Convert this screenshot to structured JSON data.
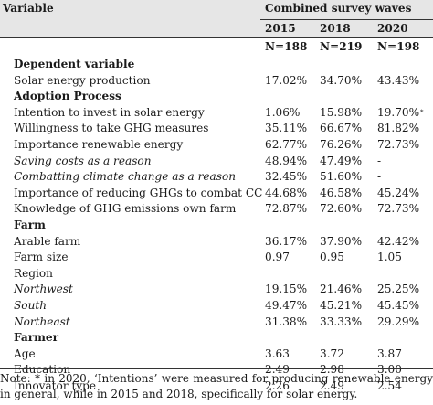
{
  "header": {
    "variable_label": "Variable",
    "group_label": "Combined survey waves",
    "years": [
      "2015",
      "2018",
      "2020"
    ],
    "counts": [
      "N=188",
      "N=219",
      "N=198"
    ]
  },
  "rows": [
    {
      "label": "Dependent variable",
      "style": "section",
      "values": [
        "",
        "",
        ""
      ]
    },
    {
      "label": "Solar energy production",
      "style": "normal",
      "values": [
        "17.02%",
        "34.70%",
        "43.43%"
      ]
    },
    {
      "label": "Adoption Process",
      "style": "section",
      "values": [
        "",
        "",
        ""
      ]
    },
    {
      "label": "Intention to invest in solar energy",
      "style": "normal",
      "values": [
        "1.06%",
        "15.98%",
        "19.70%"
      ],
      "mark": "*"
    },
    {
      "label": "Willingness to take GHG measures",
      "style": "normal",
      "values": [
        "35.11%",
        "66.67%",
        "81.82%"
      ]
    },
    {
      "label": "Importance renewable energy",
      "style": "normal",
      "values": [
        "62.77%",
        "76.26%",
        "72.73%"
      ]
    },
    {
      "label": "Saving costs as a reason",
      "style": "italic",
      "values": [
        "48.94%",
        "47.49%",
        "-"
      ]
    },
    {
      "label": "Combatting climate change as a reason",
      "style": "italic",
      "values": [
        "32.45%",
        "51.60%",
        "-"
      ]
    },
    {
      "label": "Importance of reducing GHGs to combat CC",
      "style": "normal",
      "values": [
        "44.68%",
        "46.58%",
        "45.24%"
      ]
    },
    {
      "label": "Knowledge of GHG emissions own farm",
      "style": "normal",
      "values": [
        "72.87%",
        "72.60%",
        "72.73%"
      ]
    },
    {
      "label": "Farm",
      "style": "section",
      "values": [
        "",
        "",
        ""
      ]
    },
    {
      "label": "Arable farm",
      "style": "normal",
      "values": [
        "36.17%",
        "37.90%",
        "42.42%"
      ]
    },
    {
      "label": "Farm size",
      "style": "normal",
      "values": [
        "0.97",
        "0.95",
        "1.05"
      ]
    },
    {
      "label": "Region",
      "style": "normal",
      "values": [
        "",
        "",
        ""
      ]
    },
    {
      "label": "Northwest",
      "style": "italic",
      "values": [
        "19.15%",
        "21.46%",
        "25.25%"
      ]
    },
    {
      "label": "South",
      "style": "italic",
      "values": [
        "49.47%",
        "45.21%",
        "45.45%"
      ]
    },
    {
      "label": "Northeast",
      "style": "italic",
      "values": [
        "31.38%",
        "33.33%",
        "29.29%"
      ]
    },
    {
      "label": "Farmer",
      "style": "section",
      "values": [
        "",
        "",
        ""
      ]
    },
    {
      "label": "Age",
      "style": "normal",
      "values": [
        "3.63",
        "3.72",
        "3.87"
      ]
    },
    {
      "label": "Education",
      "style": "normal",
      "values": [
        "2.49",
        "2.98",
        "3.00"
      ]
    },
    {
      "label": "Innovator type",
      "style": "normal",
      "values": [
        "2.26",
        "2.49",
        "2.54"
      ]
    }
  ],
  "note": "Note: * in 2020, ‘Intentions’ were measured for producing renewable energy in general, while in 2015 and 2018, specifically for solar energy."
}
